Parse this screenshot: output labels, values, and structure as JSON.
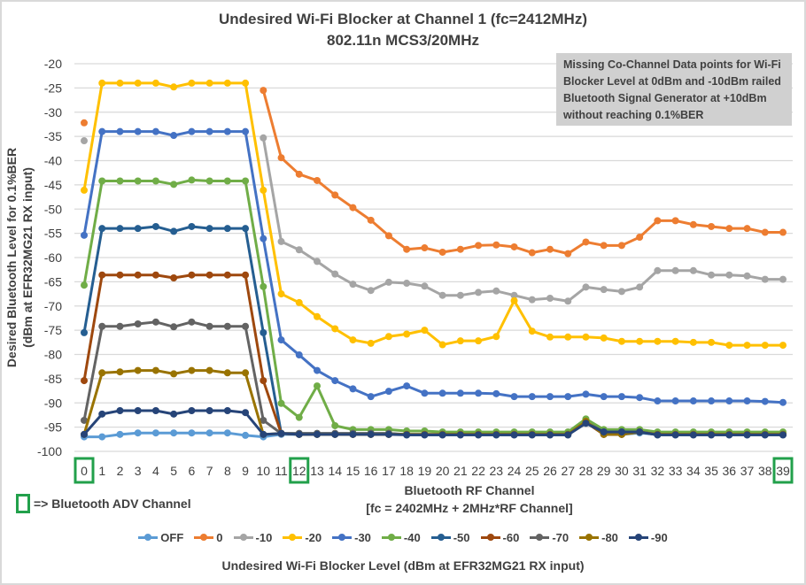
{
  "chart_data": {
    "type": "line",
    "title": "Undesired Wi-Fi Blocker at Channel 1 (fc=2412MHz)",
    "subtitle": "802.11n MCS3/20MHz",
    "xlabel": "Bluetooth RF Channel",
    "xlabel2": "[fc = 2402MHz + 2MHz*RF Channel]",
    "ylabel": "Desired Bluetooth Level for 0.1%BER",
    "ylabel2": "(dBm at EFR32MG21 RX input)",
    "ylim": [
      -100,
      -20
    ],
    "yticks": [
      -20,
      -25,
      -30,
      -35,
      -40,
      -45,
      -50,
      -55,
      -60,
      -65,
      -70,
      -75,
      -80,
      -85,
      -90,
      -95,
      -100
    ],
    "x": [
      0,
      1,
      2,
      3,
      4,
      5,
      6,
      7,
      8,
      9,
      10,
      11,
      12,
      13,
      14,
      15,
      16,
      17,
      18,
      19,
      20,
      21,
      22,
      23,
      24,
      25,
      26,
      27,
      28,
      29,
      30,
      31,
      32,
      33,
      34,
      35,
      36,
      37,
      38,
      39
    ],
    "highlighted_channels": [
      0,
      12,
      39
    ],
    "grid": true,
    "legend_title": "Undesired Wi-Fi Blocker Level (dBm at EFR32MG21 RX input)",
    "legend_position": "bottom",
    "annotation": "Missing Co-Channel Data points for Wi-Fi Blocker Level at 0dBm and -10dBm railed Bluetooth Signal Generator at +10dBm without reaching 0.1%BER",
    "adv_legend": "=> Bluetooth ADV Channel",
    "series": [
      {
        "name": "OFF",
        "color": "#5b9bd5",
        "values": [
          -97,
          -97,
          -96.5,
          -96.2,
          -96.2,
          -96.2,
          -96.2,
          -96.2,
          -96.2,
          -96.7,
          -97,
          -96.5,
          -96.5,
          -96.5,
          -96.5,
          -96.5,
          -96.5,
          -96.5,
          -96.5,
          -96.5,
          -96.5,
          -96.5,
          -96.5,
          -96.5,
          -96.5,
          -96.5,
          -96.5,
          -96.5,
          -94,
          -96.5,
          -96.5,
          -96.2,
          -96.5,
          -96.5,
          -96.5,
          -96.5,
          -96.5,
          -96.5,
          -96.5,
          -96.5
        ]
      },
      {
        "name": "0",
        "color": "#ed7d31",
        "values": [
          -32.2,
          null,
          null,
          null,
          null,
          null,
          null,
          null,
          null,
          null,
          -25.5,
          -39.4,
          -42.8,
          -44.1,
          -47.1,
          -49.7,
          -52.3,
          -55.5,
          -58.3,
          -58.0,
          -58.9,
          -58.3,
          -57.5,
          -57.4,
          -57.8,
          -59.0,
          -58.3,
          -59.2,
          -56.8,
          -57.5,
          -57.5,
          -55.8,
          -52.4,
          -52.4,
          -53.2,
          -53.6,
          -54.0,
          -54.0,
          -54.8,
          -54.8
        ]
      },
      {
        "name": "-10",
        "color": "#a5a5a5",
        "values": [
          -35.9,
          null,
          null,
          null,
          null,
          null,
          null,
          null,
          null,
          null,
          -35.3,
          -56.7,
          -58.4,
          -60.8,
          -63.4,
          -65.5,
          -66.8,
          -65.1,
          -65.3,
          -65.9,
          -67.8,
          -67.8,
          -67.2,
          -66.9,
          -67.8,
          -68.7,
          -68.4,
          -69.0,
          -66.1,
          -66.6,
          -67.0,
          -66.1,
          -62.7,
          -62.7,
          -62.7,
          -63.6,
          -63.6,
          -63.8,
          -64.5,
          -64.5
        ]
      },
      {
        "name": "-20",
        "color": "#ffc000",
        "values": [
          -46.1,
          -24.0,
          -24.0,
          -24.0,
          -24.0,
          -24.8,
          -24.0,
          -24.0,
          -24.0,
          -24.0,
          -46.1,
          -67.5,
          -69.3,
          -72.2,
          -74.7,
          -77.0,
          -77.7,
          -76.3,
          -75.8,
          -75.0,
          -78.0,
          -77.2,
          -77.2,
          -76.3,
          -68.9,
          -75.2,
          -76.4,
          -76.4,
          -76.4,
          -76.6,
          -77.3,
          -77.3,
          -77.3,
          -77.3,
          -77.5,
          -77.5,
          -78.1,
          -78.1,
          -78.1,
          -78.1
        ]
      },
      {
        "name": "-30",
        "color": "#4472c4",
        "values": [
          -55.4,
          -34.0,
          -34.0,
          -34.0,
          -34.0,
          -34.8,
          -34.0,
          -34.0,
          -34.0,
          -34.0,
          -56.1,
          -77.0,
          -80.1,
          -83.3,
          -85.4,
          -87.1,
          -88.7,
          -87.6,
          -86.5,
          -88.0,
          -88.0,
          -88.0,
          -88.0,
          -88.1,
          -88.7,
          -88.7,
          -88.7,
          -88.7,
          -88.2,
          -88.7,
          -88.7,
          -88.9,
          -89.6,
          -89.6,
          -89.6,
          -89.6,
          -89.6,
          -89.6,
          -89.7,
          -89.9
        ]
      },
      {
        "name": "-40",
        "color": "#70ad47",
        "values": [
          -65.7,
          -44.2,
          -44.2,
          -44.2,
          -44.2,
          -44.9,
          -44.0,
          -44.2,
          -44.2,
          -44.2,
          -66.0,
          -90.1,
          -93.0,
          -86.5,
          -94.7,
          -95.5,
          -95.5,
          -95.5,
          -95.8,
          -95.8,
          -96.0,
          -96.0,
          -96.0,
          -96.0,
          -96.0,
          -96.0,
          -96.0,
          -96.0,
          -93.3,
          -95.5,
          -95.5,
          -95.5,
          -96.0,
          -96.0,
          -96.0,
          -96.0,
          -96.0,
          -96.0,
          -96.0,
          -96.0
        ]
      },
      {
        "name": "-50",
        "color": "#255e91",
        "values": [
          -75.5,
          -54.0,
          -54.0,
          -54.0,
          -53.6,
          -54.6,
          -53.6,
          -54.0,
          -54.0,
          -54.0,
          -75.5,
          -96.3,
          -96.3,
          -96.3,
          -96.3,
          -96.3,
          -96.3,
          -96.3,
          -96.6,
          -96.6,
          -96.6,
          -96.6,
          -96.6,
          -96.6,
          -96.6,
          -96.6,
          -96.6,
          -96.6,
          -94.0,
          -96.0,
          -96.0,
          -96.0,
          -96.6,
          -96.6,
          -96.6,
          -96.6,
          -96.6,
          -96.6,
          -96.6,
          -96.6
        ]
      },
      {
        "name": "-60",
        "color": "#9e480e",
        "values": [
          -85.4,
          -63.6,
          -63.6,
          -63.6,
          -63.6,
          -64.2,
          -63.6,
          -63.6,
          -63.6,
          -63.6,
          -85.4,
          -96.3,
          -96.5,
          -96.5,
          -96.5,
          -96.5,
          -96.5,
          -96.5,
          -96.5,
          -96.5,
          -96.5,
          -96.5,
          -96.5,
          -96.5,
          -96.5,
          -96.5,
          -96.5,
          -96.5,
          -94.0,
          -96.5,
          -96.5,
          -96.0,
          -96.5,
          -96.5,
          -96.5,
          -96.5,
          -96.5,
          -96.5,
          -96.5,
          -96.5
        ]
      },
      {
        "name": "-70",
        "color": "#636363",
        "values": [
          -93.6,
          -74.2,
          -74.2,
          -73.7,
          -73.3,
          -74.3,
          -73.3,
          -74.2,
          -74.2,
          -74.2,
          -93.6,
          -96.3,
          -96.3,
          -96.3,
          -96.3,
          -96.3,
          -96.3,
          -96.3,
          -96.5,
          -96.5,
          -96.5,
          -96.5,
          -96.5,
          -96.5,
          -96.5,
          -96.5,
          -96.5,
          -96.5,
          -94.0,
          -96.0,
          -96.0,
          -96.0,
          -96.5,
          -96.5,
          -96.5,
          -96.5,
          -96.5,
          -96.5,
          -96.5,
          -96.5
        ]
      },
      {
        "name": "-80",
        "color": "#997300",
        "values": [
          -96.5,
          -83.8,
          -83.6,
          -83.3,
          -83.3,
          -84.0,
          -83.3,
          -83.3,
          -83.8,
          -83.8,
          -96.5,
          -96.3,
          -96.5,
          -96.5,
          -96.5,
          -96.5,
          -96.5,
          -96.5,
          -96.5,
          -96.5,
          -96.5,
          -96.5,
          -96.5,
          -96.5,
          -96.5,
          -96.5,
          -96.5,
          -96.5,
          -93.8,
          -96.5,
          -96.5,
          -96.0,
          -96.5,
          -96.5,
          -96.5,
          -96.5,
          -96.5,
          -96.5,
          -96.5,
          -96.5
        ]
      },
      {
        "name": "-90",
        "color": "#264478",
        "values": [
          -96.5,
          -92.3,
          -91.6,
          -91.6,
          -91.6,
          -92.3,
          -91.6,
          -91.6,
          -91.6,
          -92.0,
          -96.5,
          -96.3,
          -96.5,
          -96.5,
          -96.5,
          -96.5,
          -96.5,
          -96.5,
          -96.6,
          -96.6,
          -96.6,
          -96.6,
          -96.6,
          -96.6,
          -96.6,
          -96.6,
          -96.6,
          -96.6,
          -94.2,
          -96.0,
          -96.0,
          -96.0,
          -96.6,
          -96.6,
          -96.6,
          -96.6,
          -96.6,
          -96.6,
          -96.6,
          -96.6
        ]
      }
    ]
  }
}
